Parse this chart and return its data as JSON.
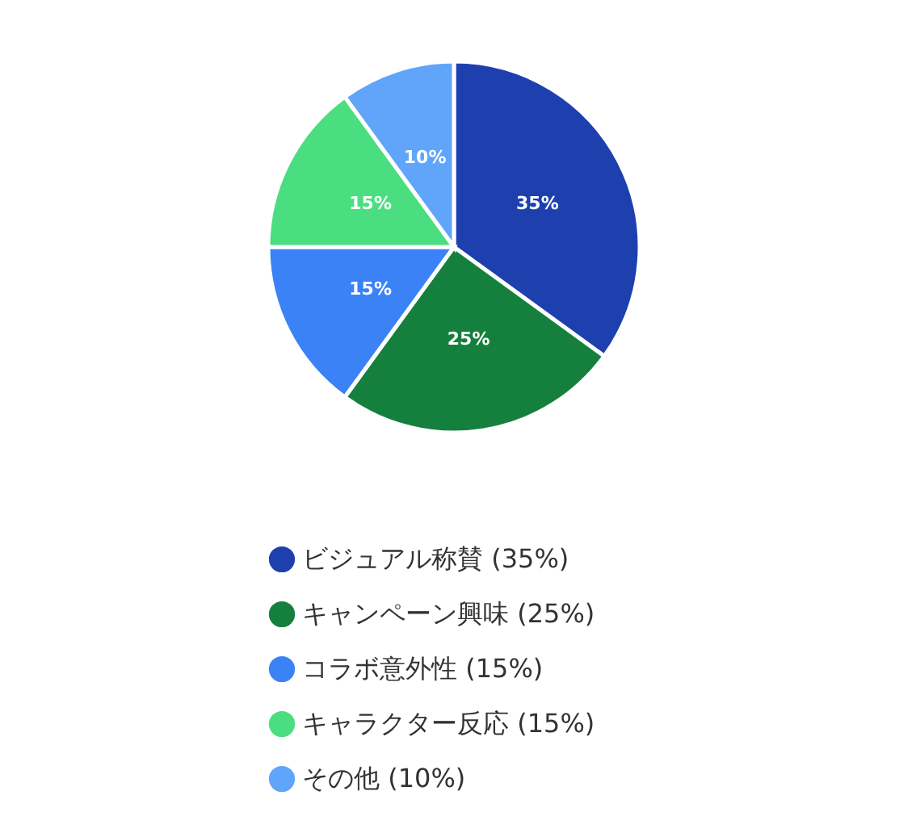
{
  "chart_data": {
    "type": "pie",
    "categories": [
      "ビジュアル称賛 (35%)",
      "キャンペーン興味 (25%)",
      "コラボ意外性 (15%)",
      "キャラクター反応 (15%)",
      "その他 (10%)"
    ],
    "values": [
      35,
      25,
      15,
      15,
      10
    ],
    "colors": [
      "#1e40af",
      "#15803d",
      "#3b82f6",
      "#4ade80",
      "#60a5fa"
    ],
    "value_labels": [
      "35%",
      "25%",
      "15%",
      "15%",
      "10%"
    ],
    "legend": "bottom"
  }
}
